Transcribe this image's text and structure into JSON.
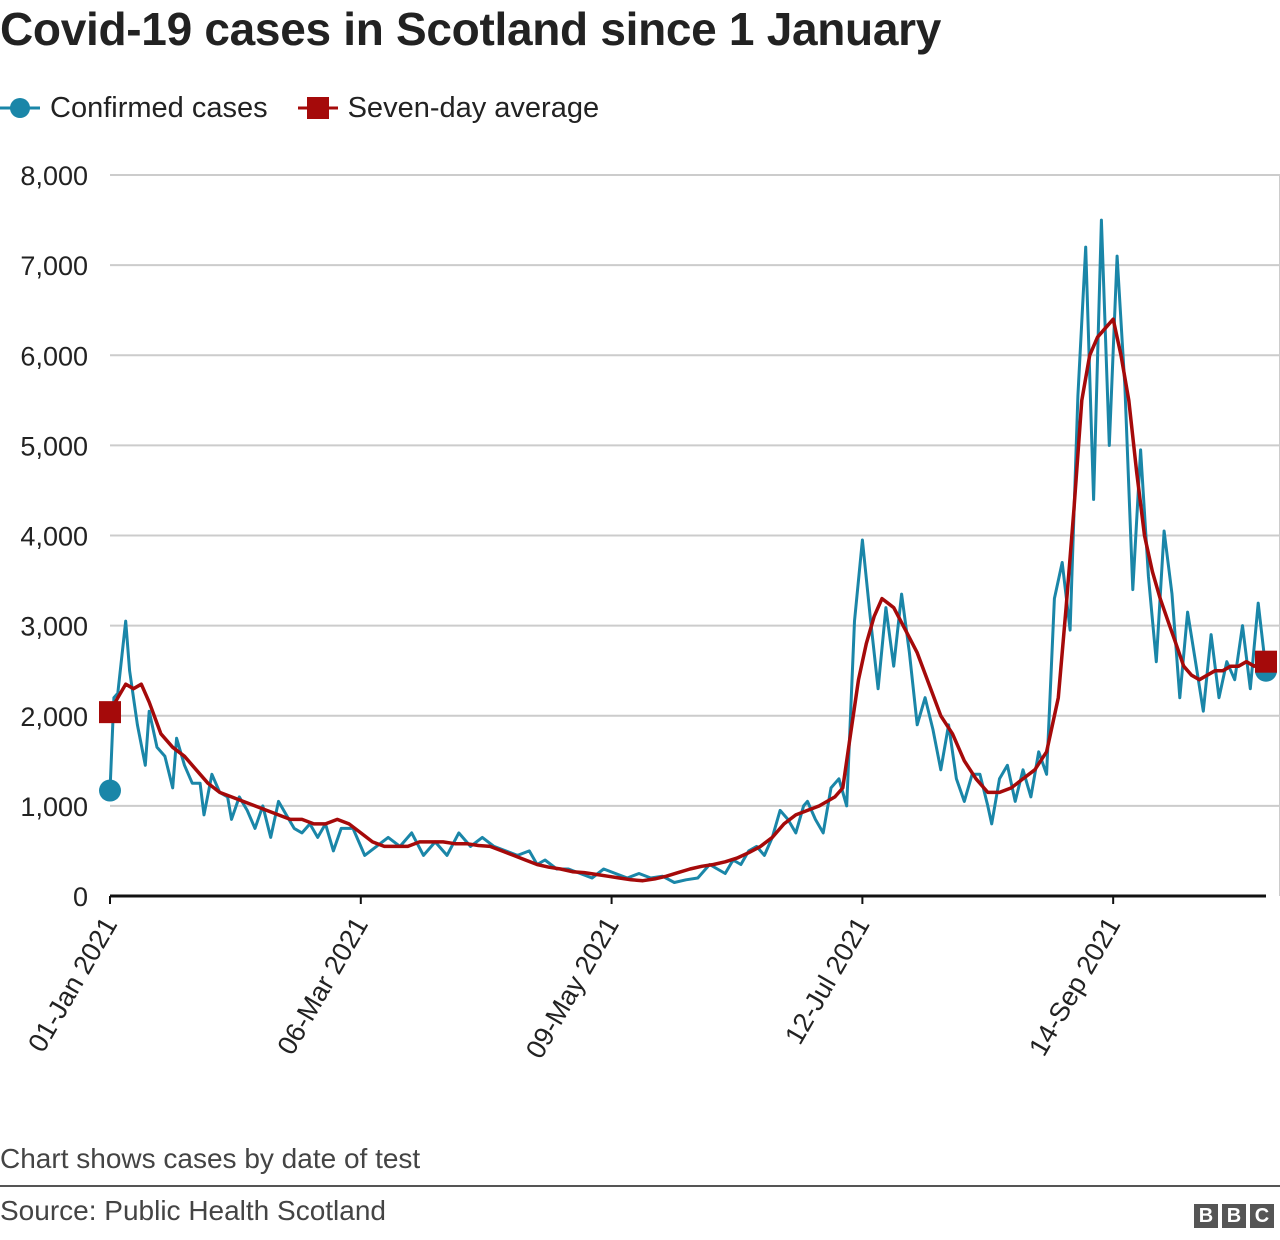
{
  "title": "Covid-19 cases in Scotland since 1 January",
  "note": "Chart shows cases by date of test",
  "source": "Source: Public Health Scotland",
  "logo": [
    "B",
    "B",
    "C"
  ],
  "colors": {
    "confirmed": "#1a86a8",
    "average": "#a50a0a",
    "grid": "#cccccc",
    "axis": "#111111"
  },
  "legend": [
    {
      "label": "Confirmed cases",
      "marker": "circle",
      "color": "#1a86a8"
    },
    {
      "label": "Seven-day average",
      "marker": "square",
      "color": "#a50a0a"
    }
  ],
  "chart_data": {
    "type": "line",
    "title": "Covid-19 cases in Scotland since 1 January",
    "xlabel": "",
    "ylabel": "",
    "ylim": [
      0,
      8000
    ],
    "yticks": [
      0,
      1000,
      2000,
      3000,
      4000,
      5000,
      6000,
      7000,
      8000
    ],
    "ytick_labels": [
      "0",
      "1,000",
      "2,000",
      "3,000",
      "4,000",
      "5,000",
      "6,000",
      "7,000",
      "8,000"
    ],
    "xlim": [
      "2021-01-01",
      "2021-10-23"
    ],
    "xticks": [
      "2021-01-01",
      "2021-03-06",
      "2021-05-09",
      "2021-07-12",
      "2021-09-14"
    ],
    "xtick_labels": [
      "01-Jan 2021",
      "06-Mar 2021",
      "09-May 2021",
      "12-Jul 2021",
      "14-Sep 2021"
    ],
    "grid": true,
    "legend_position": "top-left",
    "series": [
      {
        "name": "Confirmed cases",
        "color": "#1a86a8",
        "x": [
          "2021-01-01",
          "2021-01-02",
          "2021-01-03",
          "2021-01-05",
          "2021-01-06",
          "2021-01-08",
          "2021-01-10",
          "2021-01-11",
          "2021-01-13",
          "2021-01-15",
          "2021-01-17",
          "2021-01-18",
          "2021-01-20",
          "2021-01-22",
          "2021-01-24",
          "2021-01-25",
          "2021-01-27",
          "2021-01-29",
          "2021-01-31",
          "2021-02-01",
          "2021-02-03",
          "2021-02-05",
          "2021-02-07",
          "2021-02-09",
          "2021-02-11",
          "2021-02-13",
          "2021-02-15",
          "2021-02-17",
          "2021-02-19",
          "2021-02-21",
          "2021-02-23",
          "2021-02-25",
          "2021-02-27",
          "2021-03-01",
          "2021-03-04",
          "2021-03-07",
          "2021-03-10",
          "2021-03-13",
          "2021-03-16",
          "2021-03-19",
          "2021-03-22",
          "2021-03-25",
          "2021-03-28",
          "2021-03-31",
          "2021-04-03",
          "2021-04-06",
          "2021-04-09",
          "2021-04-12",
          "2021-04-15",
          "2021-04-18",
          "2021-04-20",
          "2021-04-22",
          "2021-04-25",
          "2021-04-28",
          "2021-05-01",
          "2021-05-04",
          "2021-05-07",
          "2021-05-10",
          "2021-05-13",
          "2021-05-16",
          "2021-05-19",
          "2021-05-22",
          "2021-05-25",
          "2021-05-28",
          "2021-05-31",
          "2021-06-03",
          "2021-06-05",
          "2021-06-07",
          "2021-06-09",
          "2021-06-11",
          "2021-06-13",
          "2021-06-15",
          "2021-06-17",
          "2021-06-19",
          "2021-06-21",
          "2021-06-23",
          "2021-06-25",
          "2021-06-27",
          "2021-06-28",
          "2021-06-30",
          "2021-07-02",
          "2021-07-04",
          "2021-07-06",
          "2021-07-08",
          "2021-07-10",
          "2021-07-12",
          "2021-07-14",
          "2021-07-16",
          "2021-07-18",
          "2021-07-20",
          "2021-07-22",
          "2021-07-24",
          "2021-07-26",
          "2021-07-28",
          "2021-07-30",
          "2021-08-01",
          "2021-08-03",
          "2021-08-05",
          "2021-08-07",
          "2021-08-09",
          "2021-08-11",
          "2021-08-13",
          "2021-08-14",
          "2021-08-16",
          "2021-08-18",
          "2021-08-20",
          "2021-08-22",
          "2021-08-24",
          "2021-08-26",
          "2021-08-28",
          "2021-08-30",
          "2021-09-01",
          "2021-09-03",
          "2021-09-05",
          "2021-09-07",
          "2021-09-09",
          "2021-09-11",
          "2021-09-13",
          "2021-09-15",
          "2021-09-17",
          "2021-09-19",
          "2021-09-21",
          "2021-09-23",
          "2021-09-25",
          "2021-09-27",
          "2021-09-29",
          "2021-10-01",
          "2021-10-03",
          "2021-10-05",
          "2021-10-07",
          "2021-10-09",
          "2021-10-11",
          "2021-10-13",
          "2021-10-15",
          "2021-10-17",
          "2021-10-19",
          "2021-10-21",
          "2021-10-23"
        ],
        "y": [
          1170,
          2200,
          2250,
          3050,
          2500,
          1900,
          1450,
          2050,
          1650,
          1550,
          1200,
          1750,
          1450,
          1250,
          1250,
          900,
          1350,
          1150,
          1100,
          850,
          1100,
          950,
          750,
          1000,
          650,
          1050,
          900,
          750,
          700,
          800,
          650,
          800,
          500,
          750,
          750,
          450,
          550,
          650,
          550,
          700,
          450,
          600,
          450,
          700,
          550,
          650,
          550,
          500,
          450,
          500,
          350,
          400,
          300,
          300,
          250,
          200,
          300,
          250,
          200,
          250,
          200,
          220,
          150,
          180,
          200,
          350,
          300,
          250,
          400,
          350,
          500,
          550,
          450,
          650,
          950,
          850,
          700,
          1000,
          1050,
          850,
          700,
          1200,
          1300,
          1000,
          3050,
          3950,
          3100,
          2300,
          3200,
          2550,
          3350,
          2700,
          1900,
          2200,
          1850,
          1400,
          1900,
          1300,
          1050,
          1350,
          1350,
          1000,
          800,
          1300,
          1450,
          1050,
          1400,
          1100,
          1600,
          1350,
          3300,
          3700,
          2950,
          5550,
          7200,
          4400,
          7500,
          5000,
          7100,
          5650,
          3400,
          4950,
          3550,
          2600,
          4050,
          3350,
          2200,
          3150,
          2600,
          2050,
          2900,
          2200,
          2600,
          2400,
          3000,
          2300,
          3250,
          2500
        ],
        "end_marker": "circle"
      },
      {
        "name": "Seven-day average",
        "color": "#a50a0a",
        "x": [
          "2021-01-01",
          "2021-01-03",
          "2021-01-05",
          "2021-01-07",
          "2021-01-09",
          "2021-01-11",
          "2021-01-14",
          "2021-01-17",
          "2021-01-20",
          "2021-01-23",
          "2021-01-26",
          "2021-01-29",
          "2021-02-01",
          "2021-02-04",
          "2021-02-07",
          "2021-02-10",
          "2021-02-13",
          "2021-02-16",
          "2021-02-19",
          "2021-02-22",
          "2021-02-25",
          "2021-02-28",
          "2021-03-03",
          "2021-03-06",
          "2021-03-09",
          "2021-03-12",
          "2021-03-15",
          "2021-03-18",
          "2021-03-21",
          "2021-03-24",
          "2021-03-27",
          "2021-03-30",
          "2021-04-02",
          "2021-04-05",
          "2021-04-08",
          "2021-04-11",
          "2021-04-14",
          "2021-04-17",
          "2021-04-20",
          "2021-04-23",
          "2021-04-26",
          "2021-04-29",
          "2021-05-02",
          "2021-05-05",
          "2021-05-08",
          "2021-05-11",
          "2021-05-14",
          "2021-05-17",
          "2021-05-20",
          "2021-05-23",
          "2021-05-26",
          "2021-05-29",
          "2021-06-01",
          "2021-06-04",
          "2021-06-07",
          "2021-06-10",
          "2021-06-13",
          "2021-06-16",
          "2021-06-19",
          "2021-06-22",
          "2021-06-25",
          "2021-06-28",
          "2021-07-01",
          "2021-07-03",
          "2021-07-05",
          "2021-07-07",
          "2021-07-09",
          "2021-07-11",
          "2021-07-13",
          "2021-07-15",
          "2021-07-17",
          "2021-07-20",
          "2021-07-23",
          "2021-07-26",
          "2021-07-29",
          "2021-08-01",
          "2021-08-04",
          "2021-08-07",
          "2021-08-10",
          "2021-08-13",
          "2021-08-16",
          "2021-08-19",
          "2021-08-22",
          "2021-08-25",
          "2021-08-28",
          "2021-08-31",
          "2021-09-02",
          "2021-09-04",
          "2021-09-06",
          "2021-09-08",
          "2021-09-10",
          "2021-09-12",
          "2021-09-14",
          "2021-09-16",
          "2021-09-18",
          "2021-09-20",
          "2021-09-22",
          "2021-09-24",
          "2021-09-26",
          "2021-09-28",
          "2021-09-30",
          "2021-10-02",
          "2021-10-04",
          "2021-10-06",
          "2021-10-08",
          "2021-10-10",
          "2021-10-12",
          "2021-10-14",
          "2021-10-16",
          "2021-10-18",
          "2021-10-20",
          "2021-10-22",
          "2021-10-23"
        ],
        "y": [
          2040,
          2200,
          2350,
          2300,
          2350,
          2150,
          1800,
          1650,
          1550,
          1400,
          1250,
          1150,
          1100,
          1050,
          1000,
          950,
          900,
          850,
          850,
          800,
          800,
          850,
          800,
          700,
          600,
          550,
          550,
          550,
          600,
          600,
          600,
          580,
          580,
          560,
          550,
          500,
          450,
          400,
          350,
          320,
          300,
          270,
          260,
          240,
          220,
          200,
          180,
          170,
          190,
          220,
          260,
          300,
          330,
          350,
          380,
          420,
          480,
          550,
          650,
          800,
          900,
          950,
          1000,
          1050,
          1100,
          1200,
          1800,
          2400,
          2800,
          3100,
          3300,
          3200,
          2950,
          2700,
          2350,
          2000,
          1800,
          1500,
          1300,
          1150,
          1150,
          1200,
          1300,
          1400,
          1600,
          2200,
          3200,
          4300,
          5500,
          6000,
          6200,
          6300,
          6400,
          6000,
          5500,
          4700,
          4000,
          3600,
          3300,
          3050,
          2800,
          2550,
          2450,
          2400,
          2450,
          2500,
          2500,
          2550,
          2550,
          2600,
          2550,
          2600,
          2600
        ],
        "end_marker": "square"
      }
    ]
  }
}
